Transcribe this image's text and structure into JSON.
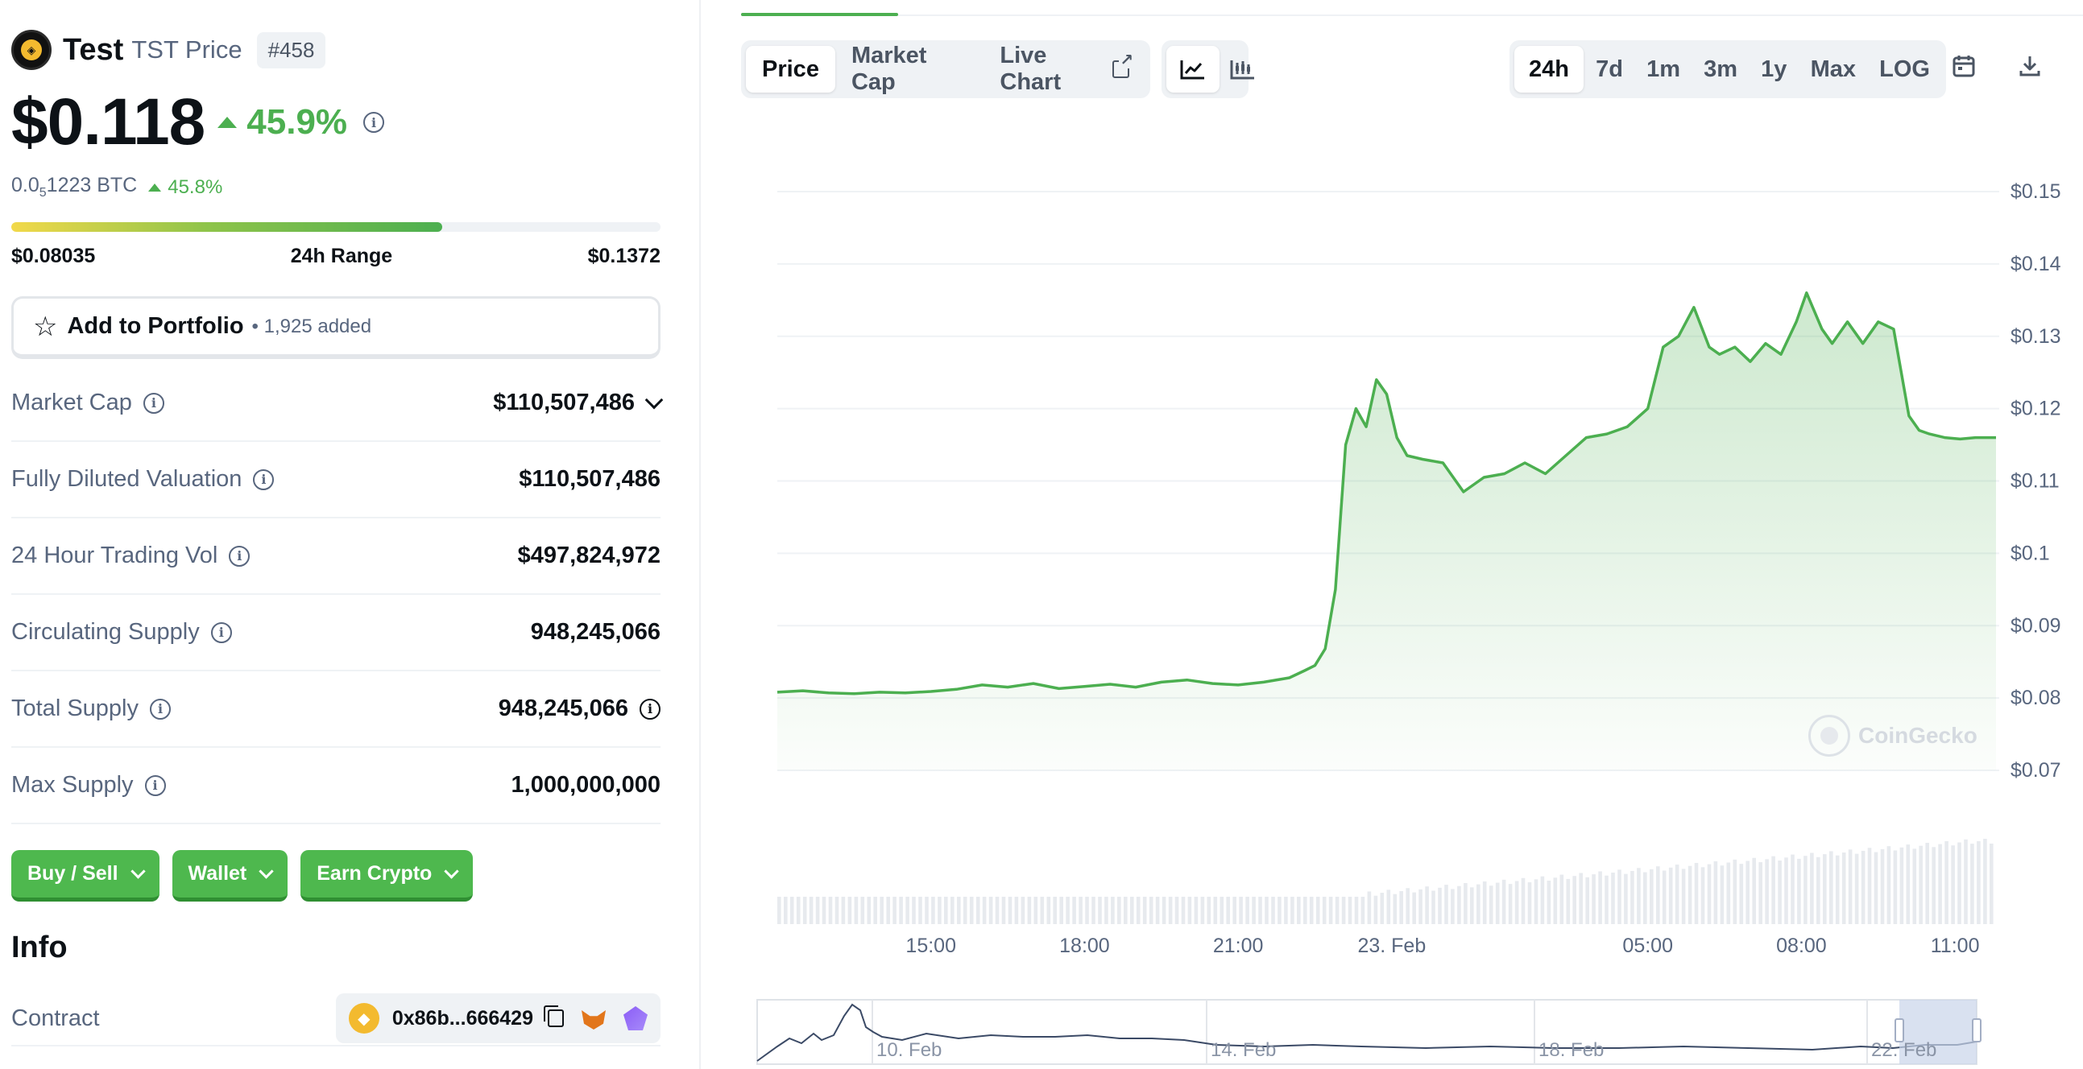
{
  "coin": {
    "name": "Test",
    "symbol_label": "TST Price",
    "rank": "#458",
    "logo_text": "◈",
    "price": "$0.118",
    "change_pct": "45.9%",
    "btc_price_prefix": "0.0",
    "btc_price_sub": "5",
    "btc_price_suffix": "1223 BTC",
    "btc_change_pct": "45.8%"
  },
  "range": {
    "low": "$0.08035",
    "label": "24h Range",
    "high": "$0.1372",
    "fill_fraction": 0.664
  },
  "portfolio": {
    "label": "Add to Portfolio",
    "count": "• 1,925 added"
  },
  "stats": [
    {
      "label": "Market Cap",
      "value": "$110,507,486"
    },
    {
      "label": "Fully Diluted Valuation",
      "value": "$110,507,486"
    },
    {
      "label": "24 Hour Trading Vol",
      "value": "$497,824,972"
    },
    {
      "label": "Circulating Supply",
      "value": "948,245,066"
    },
    {
      "label": "Total Supply",
      "value": "948,245,066"
    },
    {
      "label": "Max Supply",
      "value": "1,000,000,000"
    }
  ],
  "actions": {
    "buy_sell": "Buy / Sell",
    "wallet": "Wallet",
    "earn": "Earn Crypto"
  },
  "info": {
    "title": "Info",
    "contract_label": "Contract",
    "contract_address": "0x86b...666429",
    "bnb_icon_text": "◆"
  },
  "chart_tabs": {
    "price": "Price",
    "market_cap": "Market Cap",
    "live_chart": "Live Chart"
  },
  "ranges": [
    "24h",
    "7d",
    "1m",
    "3m",
    "1y",
    "Max",
    "LOG"
  ],
  "active_range": "24h",
  "watermark": "CoinGecko",
  "icons": {
    "line_chart": "line-chart-icon",
    "candle_chart": "candlestick-icon",
    "calendar": "calendar-icon",
    "download": "download-icon",
    "fullscreen": "fullscreen-icon",
    "star": "star-icon"
  },
  "colors": {
    "up_green": "#4caf50",
    "button_green": "#4eb84e",
    "text_dark": "#0d1217",
    "text_muted": "#58667e"
  },
  "chart_data": {
    "type": "area",
    "y_ticks": [
      "$0.15",
      "$0.14",
      "$0.13",
      "$0.12",
      "$0.11",
      "$0.1",
      "$0.09",
      "$0.08",
      "$0.07"
    ],
    "ylim": [
      0.07,
      0.15
    ],
    "x_ticks": [
      "15:00",
      "18:00",
      "21:00",
      "23. Feb",
      "05:00",
      "08:00",
      "11:00"
    ],
    "x_tick_hours": [
      15,
      18,
      21,
      24,
      29,
      32,
      35
    ],
    "x_range_hours": [
      12.0,
      35.8
    ],
    "grid": true,
    "series": [
      {
        "x_hours": [
          12.0,
          12.5,
          13.0,
          13.5,
          14.0,
          14.5,
          15.0,
          15.5,
          16.0,
          16.5,
          17.0,
          17.5,
          18.0,
          18.5,
          19.0,
          19.5,
          20.0,
          20.5,
          21.0,
          21.5,
          22.0,
          22.3,
          22.5,
          22.7,
          22.9,
          23.1,
          23.3,
          23.5,
          23.7,
          23.9,
          24.1,
          24.3,
          24.6,
          25.0,
          25.4,
          25.8,
          26.2,
          26.6,
          27.0,
          27.4,
          27.8,
          28.2,
          28.6,
          29.0,
          29.3,
          29.6,
          29.9,
          30.2,
          30.4,
          30.7,
          31.0,
          31.3,
          31.6,
          31.9,
          32.1,
          32.4,
          32.6,
          32.9,
          33.2,
          33.5,
          33.8,
          34.1,
          34.3,
          34.5,
          34.8,
          35.1,
          35.4,
          35.8
        ],
        "values": [
          0.0808,
          0.081,
          0.0807,
          0.0806,
          0.0808,
          0.0807,
          0.0809,
          0.0812,
          0.0818,
          0.0815,
          0.082,
          0.0813,
          0.0816,
          0.0819,
          0.0815,
          0.0822,
          0.0825,
          0.082,
          0.0818,
          0.0822,
          0.0828,
          0.0838,
          0.0845,
          0.0868,
          0.095,
          0.115,
          0.12,
          0.1175,
          0.124,
          0.122,
          0.116,
          0.1135,
          0.113,
          0.1125,
          0.1085,
          0.1105,
          0.111,
          0.1125,
          0.111,
          0.1135,
          0.116,
          0.1165,
          0.1175,
          0.12,
          0.1285,
          0.13,
          0.134,
          0.1285,
          0.1275,
          0.1285,
          0.1265,
          0.129,
          0.1275,
          0.132,
          0.136,
          0.131,
          0.129,
          0.132,
          0.129,
          0.132,
          0.131,
          0.119,
          0.117,
          0.1165,
          0.116,
          0.1158,
          0.116,
          0.116
        ]
      }
    ],
    "navigator_labels": [
      "10. Feb",
      "14. Feb",
      "18. Feb",
      "22. Feb"
    ]
  }
}
